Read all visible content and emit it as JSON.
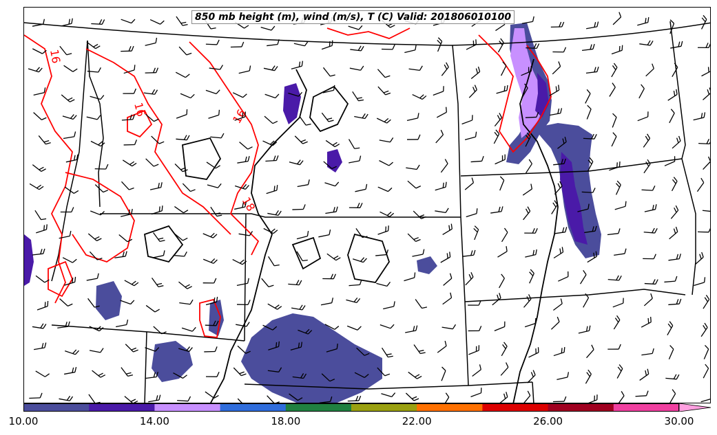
{
  "title": "850 mb height (m), wind (m/s), T (C) Valid: 201806010100",
  "temperature_contours": {
    "color": "#ff0000",
    "labels": [
      "16",
      "16",
      "16",
      "18"
    ]
  },
  "height_contours": {
    "color": "#000000"
  },
  "precip_shading": {
    "primary_color": "#4b4d9c",
    "secondary_color": "#4a1aa8",
    "light_color": "#c890ff"
  },
  "colorbar": {
    "colors": [
      "#4b4d9c",
      "#4a1aa8",
      "#c890ff",
      "#2f6ddc",
      "#208040",
      "#9aa010",
      "#ff7000",
      "#dd0000",
      "#a00020",
      "#f040a0",
      "#ffa0e0"
    ],
    "tick_labels": [
      "10.00",
      "14.00",
      "18.00",
      "22.00",
      "26.00",
      "30.00"
    ],
    "tick_values": [
      10,
      14,
      18,
      22,
      26,
      30
    ],
    "min": 10,
    "max": 31,
    "extend": "max"
  }
}
